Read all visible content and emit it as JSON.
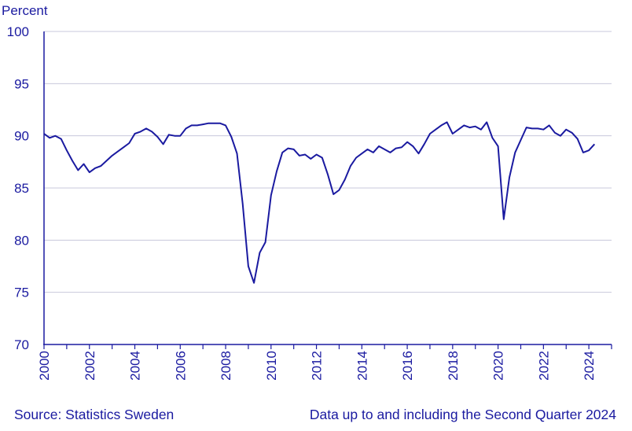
{
  "footer": {
    "source": "Source: Statistics Sweden",
    "note": "Data up to and including the Second Quarter 2024"
  },
  "colors": {
    "line": "#1a1aa0",
    "grid": "#c8c8dc",
    "text": "#1a1aa0"
  },
  "chart_data": {
    "type": "line",
    "ylabel": "Percent",
    "xlabel": "",
    "ylim": [
      70,
      100
    ],
    "xlim": [
      2000,
      2025
    ],
    "yticks": [
      70,
      75,
      80,
      85,
      90,
      95,
      100
    ],
    "xticks": [
      2000,
      2002,
      2004,
      2006,
      2008,
      2010,
      2012,
      2014,
      2016,
      2018,
      2020,
      2022,
      2024
    ],
    "grid": "horizontal",
    "series": [
      {
        "x": [
          2000.0,
          2000.25,
          2000.5,
          2000.75,
          2001.0,
          2001.25,
          2001.5,
          2001.75,
          2002.0,
          2002.25,
          2002.5,
          2002.75,
          2003.0,
          2003.25,
          2003.5,
          2003.75,
          2004.0,
          2004.25,
          2004.5,
          2004.75,
          2005.0,
          2005.25,
          2005.5,
          2005.75,
          2006.0,
          2006.25,
          2006.5,
          2006.75,
          2007.0,
          2007.25,
          2007.5,
          2007.75,
          2008.0,
          2008.25,
          2008.5,
          2008.75,
          2009.0,
          2009.25,
          2009.5,
          2009.75,
          2010.0,
          2010.25,
          2010.5,
          2010.75,
          2011.0,
          2011.25,
          2011.5,
          2011.75,
          2012.0,
          2012.25,
          2012.5,
          2012.75,
          2013.0,
          2013.25,
          2013.5,
          2013.75,
          2014.0,
          2014.25,
          2014.5,
          2014.75,
          2015.0,
          2015.25,
          2015.5,
          2015.75,
          2016.0,
          2016.25,
          2016.5,
          2016.75,
          2017.0,
          2017.25,
          2017.5,
          2017.75,
          2018.0,
          2018.25,
          2018.5,
          2018.75,
          2019.0,
          2019.25,
          2019.5,
          2019.75,
          2020.0,
          2020.25,
          2020.5,
          2020.75,
          2021.0,
          2021.25,
          2021.5,
          2021.75,
          2022.0,
          2022.25,
          2022.5,
          2022.75,
          2023.0,
          2023.25,
          2023.5,
          2023.75,
          2024.0,
          2024.25
        ],
        "values": [
          90.2,
          89.8,
          90.0,
          89.7,
          88.6,
          87.6,
          86.7,
          87.3,
          86.5,
          86.9,
          87.1,
          87.6,
          88.1,
          88.5,
          88.9,
          89.3,
          90.2,
          90.4,
          90.7,
          90.4,
          89.9,
          89.2,
          90.1,
          90.0,
          90.0,
          90.7,
          91.0,
          91.0,
          91.1,
          91.2,
          91.2,
          91.2,
          91.0,
          89.9,
          88.3,
          83.5,
          77.5,
          75.9,
          78.8,
          79.8,
          84.3,
          86.6,
          88.4,
          88.8,
          88.7,
          88.1,
          88.2,
          87.8,
          88.2,
          87.9,
          86.3,
          84.4,
          84.8,
          85.8,
          87.1,
          87.9,
          88.3,
          88.7,
          88.4,
          89.0,
          88.7,
          88.4,
          88.8,
          88.9,
          89.4,
          89.0,
          88.3,
          89.2,
          90.2,
          90.6,
          91.0,
          91.3,
          90.2,
          90.6,
          91.0,
          90.8,
          90.9,
          90.6,
          91.3,
          89.8,
          89.0,
          82.0,
          86.0,
          88.4,
          89.6,
          90.8,
          90.7,
          90.7,
          90.6,
          91.0,
          90.3,
          90.0,
          90.6,
          90.3,
          89.7,
          88.4,
          88.6,
          89.2
        ]
      }
    ]
  }
}
